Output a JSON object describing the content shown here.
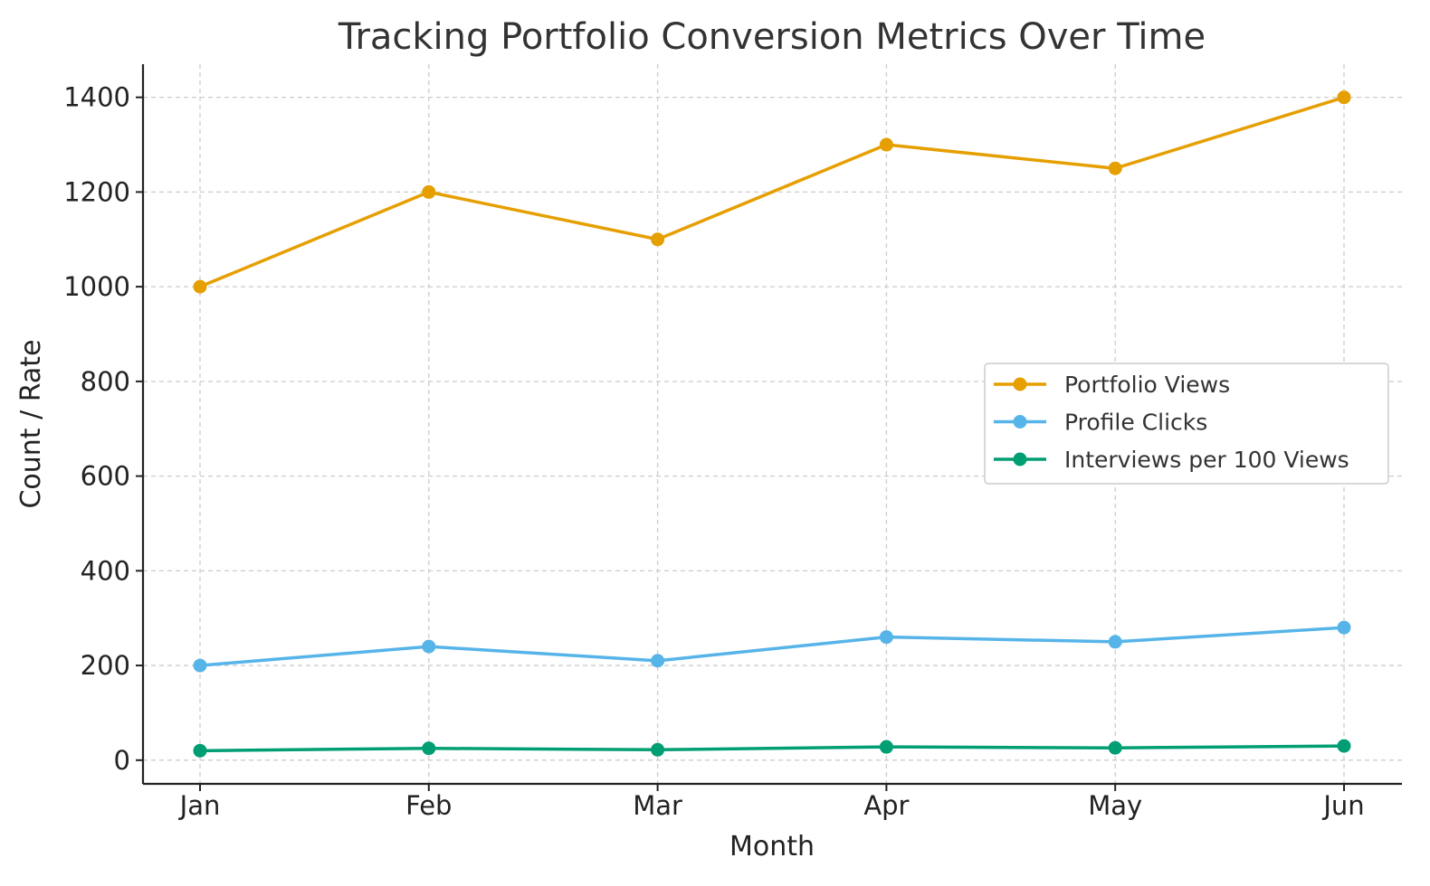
{
  "chart_data": {
    "type": "line",
    "title": "Tracking Portfolio Conversion Metrics Over Time",
    "xlabel": "Month",
    "ylabel": "Count / Rate",
    "categories": [
      "Jan",
      "Feb",
      "Mar",
      "Apr",
      "May",
      "Jun"
    ],
    "ylim": [
      -50,
      1470
    ],
    "yticks": [
      0,
      200,
      400,
      600,
      800,
      1000,
      1200,
      1400
    ],
    "grid": true,
    "legend_position": "center-right",
    "series": [
      {
        "name": "Portfolio Views",
        "color": "#E69F00",
        "values": [
          1000,
          1200,
          1100,
          1300,
          1250,
          1400
        ]
      },
      {
        "name": "Profile Clicks",
        "color": "#56B4E9",
        "values": [
          200,
          240,
          210,
          260,
          250,
          280
        ]
      },
      {
        "name": "Interviews per 100 Views",
        "color": "#009E73",
        "values": [
          20,
          25,
          22,
          28,
          26,
          30
        ]
      }
    ]
  }
}
